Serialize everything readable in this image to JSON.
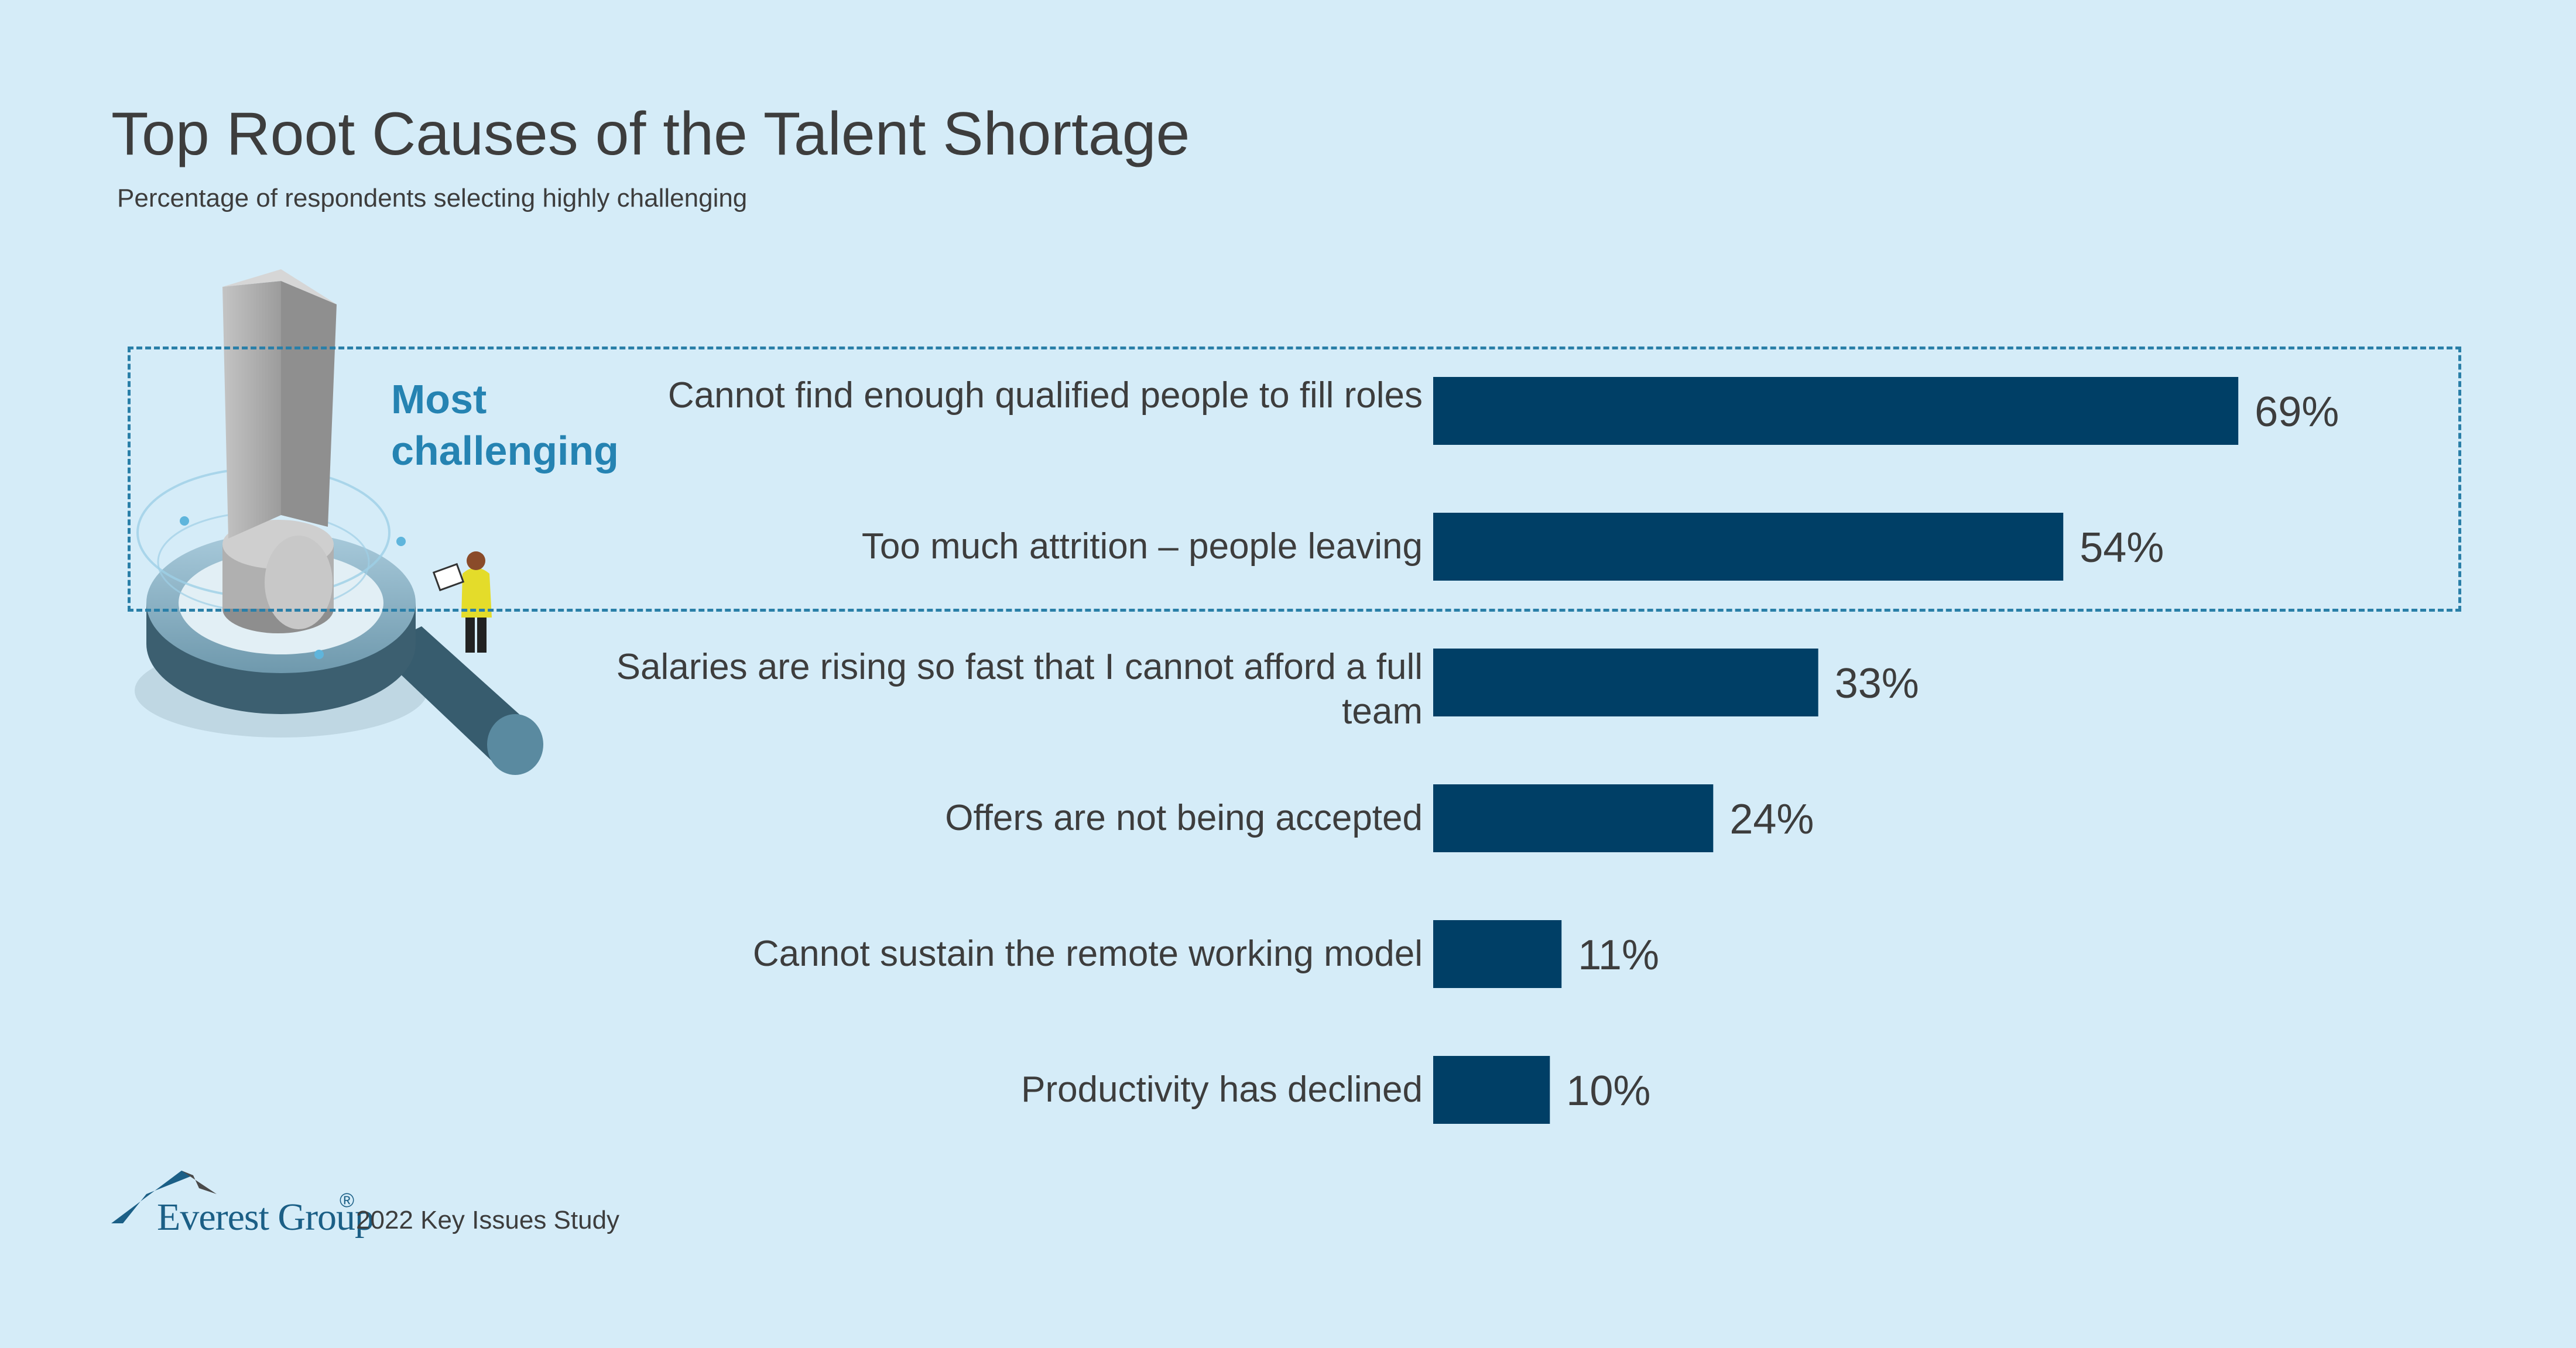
{
  "title": "Top Root Causes of the Talent Shortage",
  "subtitle": "Percentage of respondents selecting highly challenging",
  "callout": {
    "label": "Most challenging",
    "icon": "exclamation-magnifier-illustration"
  },
  "chart_data": {
    "type": "bar",
    "orientation": "horizontal",
    "categories": [
      "Cannot find enough qualified people to fill roles",
      "Too much attrition – people leaving",
      "Salaries are rising so fast that I cannot afford a full team",
      "Offers are not being accepted",
      "Cannot sustain the remote working model",
      "Productivity has declined"
    ],
    "values": [
      69,
      54,
      33,
      24,
      11,
      10
    ],
    "value_labels": [
      "69%",
      "54%",
      "33%",
      "24%",
      "11%",
      "10%"
    ],
    "unit": "%",
    "xlim": [
      0,
      100
    ],
    "bar_color": "#003f66",
    "grid": false,
    "legend": "none",
    "highlighted_categories": [
      0,
      1
    ]
  },
  "footer": {
    "brand": "Everest Group",
    "registered": "®",
    "source": "2022 Key Issues Study"
  },
  "colors": {
    "background": "#d5ecf8",
    "callout_border": "#2a7fa8",
    "callout_text": "#2583b2",
    "text": "#3d3d3d",
    "brand": "#1b5f86"
  }
}
